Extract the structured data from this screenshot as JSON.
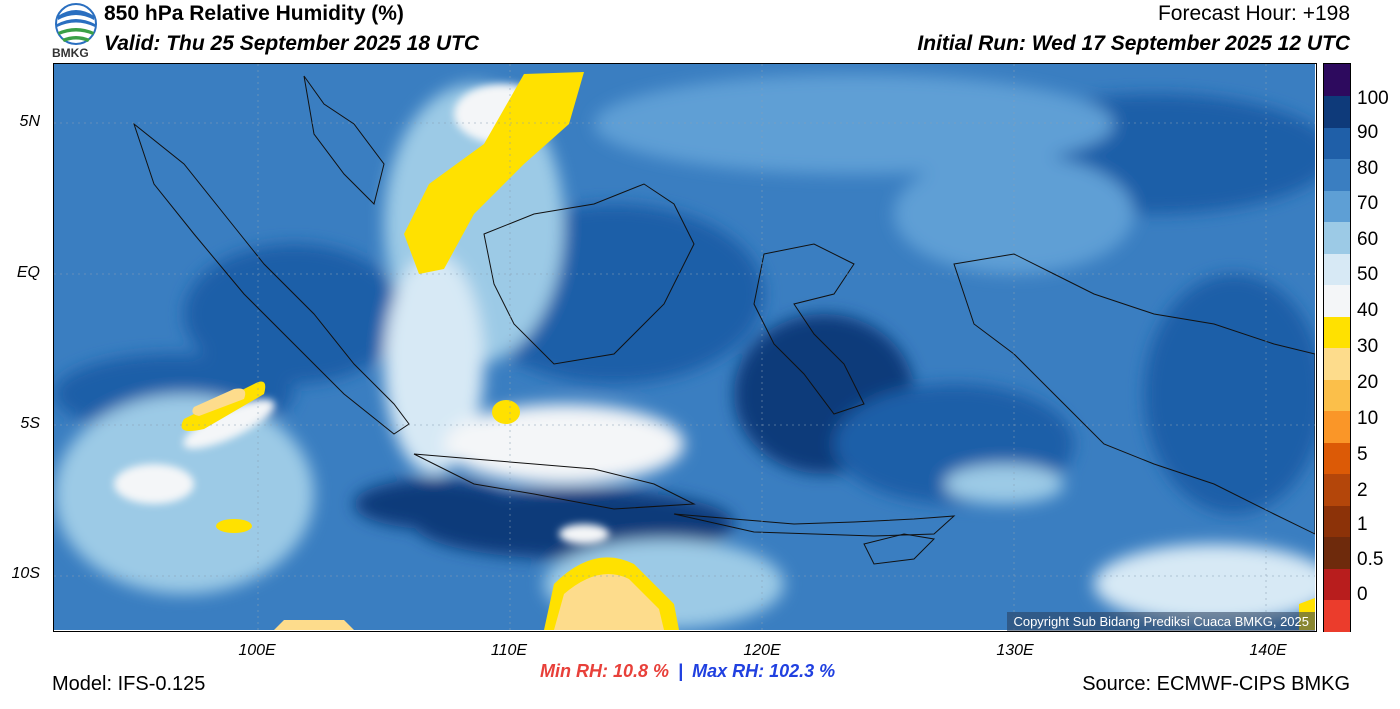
{
  "header": {
    "title": "850 hPa Relative Humidity (%)",
    "valid": "Valid: Thu 25 September 2025 18 UTC",
    "forecast_hour": "Forecast Hour: +198",
    "initial_run": "Initial Run: Wed 17 September 2025 12 UTC",
    "logo_text": "BMKG"
  },
  "map": {
    "lat_labels": [
      "5N",
      "EQ",
      "5S",
      "10S"
    ],
    "lon_labels": [
      "100E",
      "110E",
      "120E",
      "130E",
      "140E"
    ],
    "copyright": "Copyright Sub Bidang Prediksi Cuaca BMKG, 2025"
  },
  "stats": {
    "min_label": "Min RH:  10.8 %",
    "separator": "|",
    "max_label": "Max RH: 102.3 %"
  },
  "footer": {
    "model": "Model: IFS-0.125",
    "source": "Source: ECMWF-CIPS BMKG"
  },
  "colorbar": {
    "labels": [
      "100",
      "90",
      "80",
      "70",
      "60",
      "50",
      "40",
      "30",
      "20",
      "10",
      "5",
      "2",
      "1",
      "0.5",
      "0"
    ],
    "colors": [
      "#eb3c2c",
      "#b81d1d",
      "#6e2a0c",
      "#8c3208",
      "#b4460a",
      "#dc5a06",
      "#fa9628",
      "#fbbf4a",
      "#fddc8c",
      "#ffe100",
      "#f4f6f8",
      "#d7e9f5",
      "#9ccae6",
      "#5e9fd5",
      "#3a7ec1",
      "#1f5fa8",
      "#0e3a7a",
      "#2d0a5e"
    ]
  }
}
